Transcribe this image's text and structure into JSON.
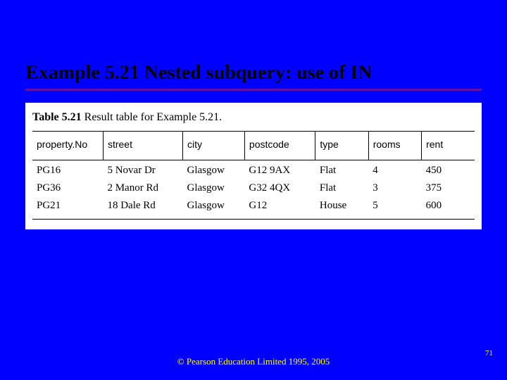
{
  "slide": {
    "title": "Example 5.21  Nested subquery: use of IN",
    "footer": "© Pearson Education Limited 1995, 2005",
    "page_number": "71"
  },
  "table": {
    "caption_label": "Table 5.21",
    "caption_text": "Result table for Example 5.21.",
    "columns": [
      "property.No",
      "street",
      "city",
      "postcode",
      "type",
      "rooms",
      "rent"
    ],
    "col_widths": [
      "16%",
      "18%",
      "14%",
      "16%",
      "12%",
      "12%",
      "12%"
    ],
    "rows": [
      [
        "PG16",
        "5 Novar Dr",
        "Glasgow",
        "G12 9AX",
        "Flat",
        "4",
        "450"
      ],
      [
        "PG36",
        "2 Manor Rd",
        "Glasgow",
        "G32 4QX",
        "Flat",
        "3",
        "375"
      ],
      [
        "PG21",
        "18 Dale Rd",
        "Glasgow",
        "G12",
        "House",
        "5",
        "600"
      ]
    ]
  },
  "colors": {
    "background": "#0000ff",
    "title_text": "#000000",
    "underline": "#6a0dad",
    "table_bg": "#ffffff",
    "footer_text": "#ffff00"
  }
}
